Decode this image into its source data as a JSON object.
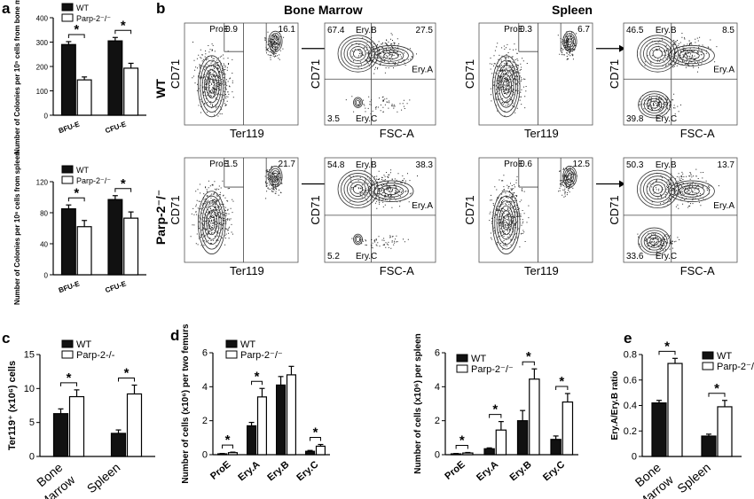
{
  "panel_letters": {
    "a": "a",
    "b": "b",
    "c": "c",
    "d": "d",
    "e": "e"
  },
  "flow": {
    "headers": {
      "bone_marrow": "Bone Marrow",
      "spleen": "Spleen"
    },
    "rows": {
      "wt": "WT",
      "ko": "Parp-2⁻/⁻"
    },
    "axis": {
      "cd71": "CD71",
      "ter119": "Ter119",
      "fsc": "FSC-A"
    },
    "gate_labels": {
      "proe": "ProE",
      "ery_a": "Ery.A",
      "ery_b": "Ery.B",
      "ery_c": "Ery.C"
    },
    "plots": {
      "wt_bm_ter": {
        "proe": "0.9",
        "right": "16.1"
      },
      "wt_bm_fsc": {
        "b": "67.4",
        "a": "27.5",
        "c": "3.5"
      },
      "wt_sp_ter": {
        "proe": "0.3",
        "right": "6.7"
      },
      "wt_sp_fsc": {
        "b": "46.5",
        "a": "8.5",
        "c": "39.8"
      },
      "ko_bm_ter": {
        "proe": "1.5",
        "right": "21.7"
      },
      "ko_bm_fsc": {
        "b": "54.8",
        "a": "38.3",
        "c": "5.2"
      },
      "ko_sp_ter": {
        "proe": "0.6",
        "right": "12.5"
      },
      "ko_sp_fsc": {
        "b": "50.3",
        "a": "13.7",
        "c": "33.6"
      }
    }
  },
  "chart_data": [
    {
      "id": "a_bm",
      "type": "bar",
      "ylabel": "Number of Colonies per 10⁵ cells from bone marrow",
      "categories": [
        "BFU-E",
        "CFU-E"
      ],
      "series": [
        {
          "name": "WT",
          "values": [
            290,
            305
          ]
        },
        {
          "name": "Parp-2⁻/⁻",
          "values": [
            145,
            193
          ]
        }
      ],
      "errors": [
        [
          12,
          14
        ],
        [
          12,
          20
        ]
      ],
      "ylim": [
        0,
        400
      ],
      "yticks": [
        0,
        100,
        200,
        300,
        400
      ],
      "significance": [
        "*",
        "*"
      ]
    },
    {
      "id": "a_sp",
      "type": "bar",
      "ylabel": "Number of Colonies per 10⁶ cells from spleen",
      "categories": [
        "BFU-E",
        "CFU-E"
      ],
      "series": [
        {
          "name": "WT",
          "values": [
            85,
            97
          ]
        },
        {
          "name": "Parp-2⁻/⁻",
          "values": [
            62,
            73
          ]
        }
      ],
      "errors": [
        [
          5,
          5
        ],
        [
          8,
          8
        ]
      ],
      "ylim": [
        0,
        120
      ],
      "yticks": [
        0,
        40,
        80,
        120
      ],
      "significance": [
        "*",
        "*"
      ]
    },
    {
      "id": "c",
      "type": "bar",
      "ylabel": "Ter119⁺ (x10⁶) cells",
      "categories": [
        "Bone Marrow",
        "Spleen"
      ],
      "series": [
        {
          "name": "WT",
          "values": [
            6.3,
            3.4
          ]
        },
        {
          "name": "Parp-2-/-",
          "values": [
            8.8,
            9.2
          ]
        }
      ],
      "errors": [
        [
          0.7,
          0.5
        ],
        [
          1.0,
          1.3
        ]
      ],
      "ylim": [
        0,
        15
      ],
      "yticks": [
        0,
        5,
        10,
        15
      ],
      "significance": [
        "*",
        "*"
      ]
    },
    {
      "id": "d_bm",
      "type": "bar",
      "ylabel": "Number of cells (x10⁶) per two femurs",
      "categories": [
        "ProE",
        "Ery.A",
        "Ery.B",
        "Ery.C"
      ],
      "series": [
        {
          "name": "WT",
          "values": [
            0.05,
            1.7,
            4.1,
            0.2
          ]
        },
        {
          "name": "Parp-2⁻/⁻",
          "values": [
            0.12,
            3.4,
            4.7,
            0.5
          ]
        }
      ],
      "errors": [
        [
          0.02,
          0.2,
          0.5,
          0.05
        ],
        [
          0.03,
          0.5,
          0.5,
          0.1
        ]
      ],
      "ylim": [
        0,
        6
      ],
      "yticks": [
        0,
        2,
        4,
        6
      ],
      "significance": [
        "*",
        "*",
        "",
        "*"
      ]
    },
    {
      "id": "d_sp",
      "type": "bar",
      "ylabel": "Number of cells (x10⁶) per spleen",
      "categories": [
        "ProE",
        "Ery.A",
        "Ery.B",
        "Ery.C"
      ],
      "series": [
        {
          "name": "WT",
          "values": [
            0.05,
            0.35,
            2.0,
            0.9
          ]
        },
        {
          "name": "Parp-2⁻/⁻",
          "values": [
            0.1,
            1.45,
            4.45,
            3.1
          ]
        }
      ],
      "errors": [
        [
          0.02,
          0.05,
          0.6,
          0.2
        ],
        [
          0.03,
          0.5,
          0.6,
          0.5
        ]
      ],
      "ylim": [
        0,
        6
      ],
      "yticks": [
        0,
        2,
        4,
        6
      ],
      "significance": [
        "*",
        "*",
        "*",
        "*"
      ]
    },
    {
      "id": "e",
      "type": "bar",
      "ylabel": "Ery.A/Ery.B ratio",
      "categories": [
        "Bone Marrow",
        "Spleen"
      ],
      "series": [
        {
          "name": "WT",
          "values": [
            0.42,
            0.16
          ]
        },
        {
          "name": "Parp-2⁻/⁻",
          "values": [
            0.73,
            0.39
          ]
        }
      ],
      "errors": [
        [
          0.02,
          0.015
        ],
        [
          0.04,
          0.05
        ]
      ],
      "ylim": [
        0,
        0.8
      ],
      "yticks": [
        0,
        0.2,
        0.4,
        0.6,
        0.8
      ],
      "significance": [
        "*",
        "*"
      ]
    }
  ]
}
